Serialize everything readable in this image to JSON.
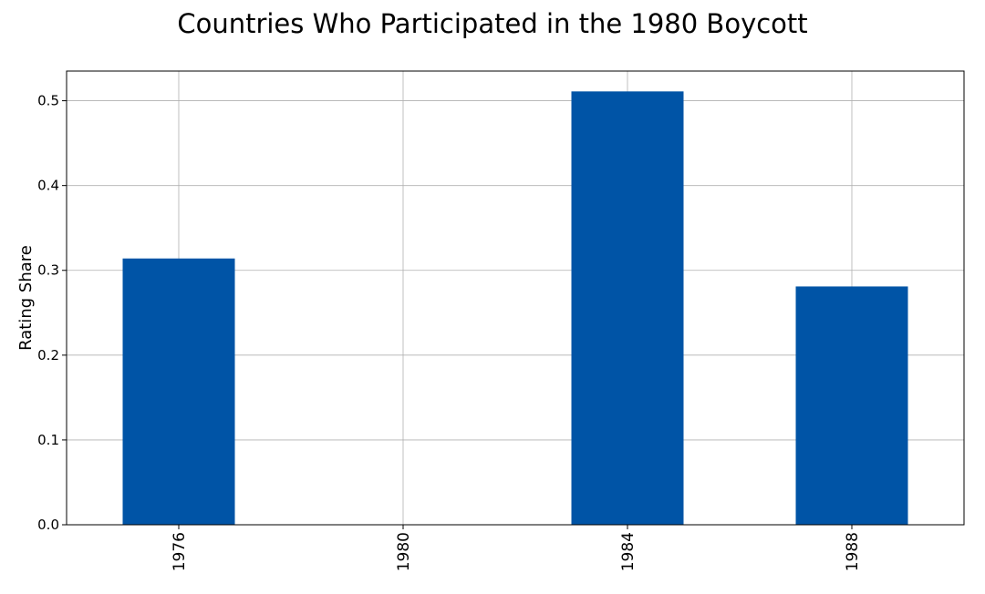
{
  "chart_data": {
    "type": "bar",
    "title": "Countries Who Participated in the 1980 Boycott",
    "xlabel": "",
    "ylabel": "Rating Share",
    "categories": [
      "1976",
      "1980",
      "1984",
      "1988"
    ],
    "values": [
      0.314,
      0.0,
      0.511,
      0.281
    ],
    "ylim": [
      0,
      0.535
    ],
    "yticks": [
      "0.0",
      "0.1",
      "0.2",
      "0.3",
      "0.4",
      "0.5"
    ],
    "grid": true,
    "bar_color": "#0054a6",
    "grid_color": "#b0b0b0"
  }
}
